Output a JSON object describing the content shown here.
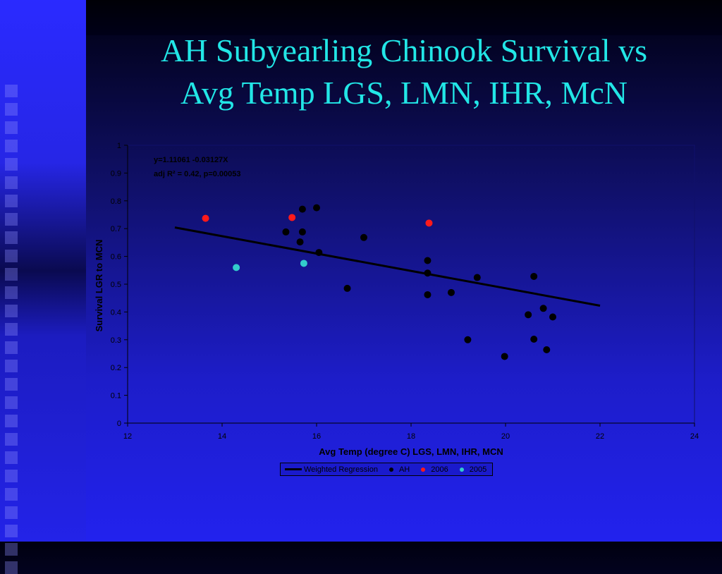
{
  "slide": {
    "title_line1": "AH Subyearling Chinook Survival vs",
    "title_line2": "Avg Temp LGS, LMN, IHR, McN"
  },
  "chart_data": {
    "type": "scatter",
    "xlabel": "Avg Temp (degree C) LGS, LMN, IHR, MCN",
    "ylabel": "Survival LGR to MCN",
    "xlim": [
      12,
      24
    ],
    "ylim": [
      0,
      1
    ],
    "x_ticks": [
      12,
      14,
      16,
      18,
      20,
      22,
      24
    ],
    "y_ticks": [
      0,
      0.1,
      0.2,
      0.3,
      0.4,
      0.5,
      0.6,
      0.7,
      0.8,
      0.9,
      1
    ],
    "annotation_line1": "y=1.11061 -0.03127X",
    "annotation_line2": "adj R² = 0.42, p=0.00053",
    "series": [
      {
        "name": "AH",
        "color": "#000000",
        "points": [
          [
            15.7,
            0.77
          ],
          [
            16.0,
            0.775
          ],
          [
            15.35,
            0.688
          ],
          [
            15.7,
            0.688
          ],
          [
            15.65,
            0.652
          ],
          [
            16.05,
            0.614
          ],
          [
            17.0,
            0.668
          ],
          [
            16.65,
            0.485
          ],
          [
            18.35,
            0.585
          ],
          [
            18.35,
            0.54
          ],
          [
            18.35,
            0.462
          ],
          [
            18.85,
            0.47
          ],
          [
            19.4,
            0.524
          ],
          [
            19.2,
            0.3
          ],
          [
            19.98,
            0.24
          ],
          [
            20.6,
            0.528
          ],
          [
            20.8,
            0.413
          ],
          [
            20.48,
            0.39
          ],
          [
            21.0,
            0.382
          ],
          [
            20.6,
            0.302
          ],
          [
            20.87,
            0.264
          ]
        ]
      },
      {
        "name": "2006",
        "color": "#ff1a1a",
        "points": [
          [
            13.65,
            0.737
          ],
          [
            15.48,
            0.74
          ],
          [
            18.38,
            0.72
          ]
        ]
      },
      {
        "name": "2005",
        "color": "#33cccc",
        "points": [
          [
            14.3,
            0.56
          ],
          [
            15.73,
            0.575
          ]
        ]
      }
    ],
    "regression": {
      "name": "Weighted Regression",
      "intercept": 1.11061,
      "slope": -0.03127,
      "x_range": [
        13,
        22
      ]
    },
    "grid": false,
    "legend_position": "bottom"
  }
}
